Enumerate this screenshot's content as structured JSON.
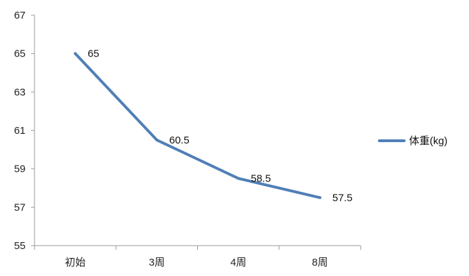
{
  "chart_data": {
    "type": "line",
    "categories": [
      "初始",
      "3周",
      "4周",
      "8周"
    ],
    "series": [
      {
        "name": "体重(kg)",
        "values": [
          65,
          60.5,
          58.5,
          57.5
        ]
      }
    ],
    "y_ticks": [
      55,
      57,
      59,
      61,
      63,
      65,
      67
    ],
    "ylim": [
      55,
      67
    ],
    "grid": false,
    "legend_position": "right",
    "line_color": "#4f7fb7"
  }
}
